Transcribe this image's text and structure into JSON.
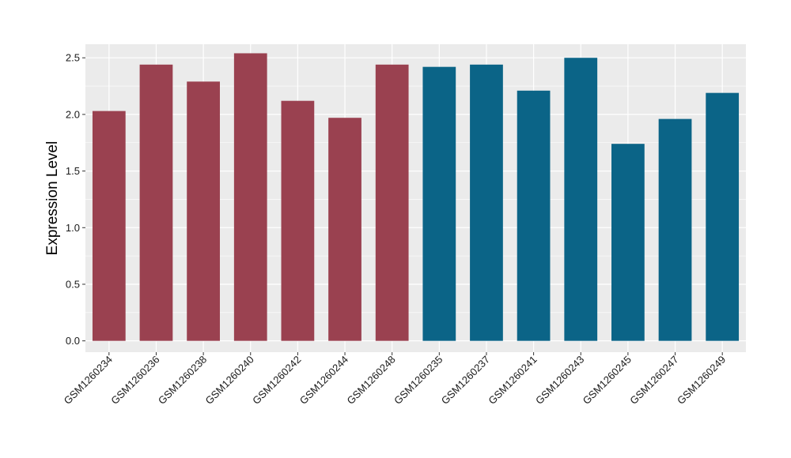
{
  "chart_data": {
    "type": "bar",
    "title": "",
    "xlabel": "",
    "ylabel": "Expression Level",
    "ylim": [
      -0.1,
      2.62
    ],
    "yticks": [
      0.0,
      0.5,
      1.0,
      1.5,
      2.0,
      2.5
    ],
    "ytick_labels": [
      "0.0",
      "0.5",
      "1.0",
      "1.5",
      "2.0",
      "2.5"
    ],
    "grid": true,
    "legend": "none",
    "background_color": "#ebebeb",
    "categories": [
      "GSM1260234",
      "GSM1260236",
      "GSM1260238",
      "GSM1260240",
      "GSM1260242",
      "GSM1260244",
      "GSM1260248",
      "GSM1260235",
      "GSM1260237",
      "GSM1260241",
      "GSM1260243",
      "GSM1260245",
      "GSM1260247",
      "GSM1260249"
    ],
    "values": [
      2.03,
      2.44,
      2.29,
      2.54,
      2.12,
      1.97,
      2.44,
      2.42,
      2.44,
      2.21,
      2.5,
      1.74,
      1.96,
      2.19
    ],
    "groups": [
      0,
      0,
      0,
      0,
      0,
      0,
      0,
      1,
      1,
      1,
      1,
      1,
      1,
      1
    ],
    "group_colors": [
      "#9a4150",
      "#0b6487"
    ]
  }
}
